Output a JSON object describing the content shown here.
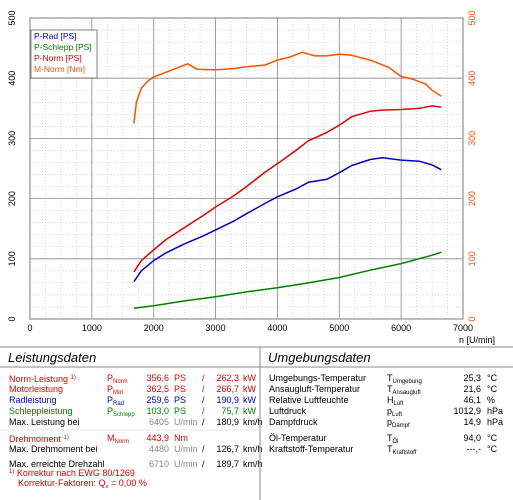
{
  "chart_data": {
    "type": "line",
    "x_axis": {
      "min": 0,
      "max": 7000,
      "ticks": [
        0,
        1000,
        2000,
        3000,
        4000,
        5000,
        6000,
        7000
      ],
      "label": "n [U/min]"
    },
    "y_left": {
      "min": 0,
      "max": 500,
      "ticks": [
        0,
        100,
        200,
        300,
        400,
        500
      ]
    },
    "y_right": {
      "min": 0,
      "max": 500,
      "ticks": [
        0,
        100,
        200,
        300,
        400,
        500
      ]
    },
    "grid": true,
    "legend_position": "top-left",
    "series": [
      {
        "name": "P-Rad [PS]",
        "color": "#0000c8",
        "axis": "left",
        "x": [
          1680,
          1800,
          2000,
          2200,
          2500,
          2800,
          3000,
          3300,
          3500,
          3800,
          4000,
          4300,
          4500,
          4800,
          5000,
          5200,
          5500,
          5700,
          6000,
          6300,
          6500,
          6650
        ],
        "y": [
          62,
          80,
          97,
          110,
          125,
          138,
          148,
          163,
          175,
          192,
          203,
          216,
          227,
          232,
          243,
          255,
          265,
          268,
          264,
          262,
          256,
          248
        ]
      },
      {
        "name": "P-Schlepp [PS]",
        "color": "#008000",
        "axis": "left",
        "x": [
          1680,
          2000,
          2500,
          3000,
          3500,
          4000,
          4500,
          5000,
          5500,
          6000,
          6500,
          6650
        ],
        "y": [
          18,
          22,
          30,
          37,
          45,
          52,
          60,
          69,
          81,
          92,
          106,
          111
        ]
      },
      {
        "name": "P-Norm [PS]",
        "color": "#e00000",
        "axis": "left",
        "x": [
          1680,
          1800,
          2000,
          2200,
          2500,
          2800,
          3000,
          3300,
          3500,
          3800,
          4000,
          4300,
          4500,
          4800,
          5000,
          5200,
          5500,
          5700,
          6000,
          6300,
          6500,
          6650
        ],
        "y": [
          78,
          97,
          115,
          132,
          152,
          172,
          186,
          205,
          220,
          244,
          258,
          280,
          296,
          310,
          322,
          336,
          345,
          347,
          348,
          350,
          354,
          352
        ]
      },
      {
        "name": "M-Norm [Nm]",
        "color": "#ff5000",
        "axis": "right",
        "x": [
          1680,
          1720,
          1800,
          1900,
          2000,
          2200,
          2400,
          2550,
          2700,
          3000,
          3300,
          3500,
          3800,
          4000,
          4200,
          4400,
          4600,
          4800,
          5000,
          5200,
          5500,
          5800,
          6000,
          6200,
          6400,
          6500,
          6650
        ],
        "y": [
          325,
          360,
          383,
          395,
          402,
          410,
          418,
          424,
          415,
          414,
          416,
          419,
          422,
          430,
          435,
          443,
          437,
          437,
          440,
          438,
          430,
          418,
          403,
          398,
          390,
          380,
          370
        ]
      }
    ]
  },
  "left_panel": {
    "title": "Leistungsdaten",
    "rows": [
      {
        "label": "Norm-Leistung",
        "sup": "1)",
        "sym": "P",
        "sub": "Norm",
        "v1": "356,6",
        "u1": "PS",
        "sep": "/",
        "v2": "262,3",
        "u2": "kW"
      },
      {
        "label": "Motorleistung",
        "sym": "P",
        "sub": "Mot",
        "v1": "362,5",
        "u1": "PS",
        "sep": "/",
        "v2": "266,7",
        "u2": "kW"
      },
      {
        "label": "Radleistung",
        "sym": "P",
        "sub": "Rad",
        "v1": "259,6",
        "u1": "PS",
        "sep": "/",
        "v2": "190,9",
        "u2": "kW"
      },
      {
        "label": "Schleppleistung",
        "sym": "P",
        "sub": "Schlepp",
        "v1": "103,0",
        "u1": "PS",
        "sep": "/",
        "v2": "75,7",
        "u2": "kW"
      },
      {
        "label": "Max. Leistung bei",
        "v1": "6405",
        "u1": "U/min",
        "sep": "/",
        "v2": "180,9",
        "u2": "km/h"
      },
      {
        "label": "Drehmoment",
        "sup": "1)",
        "sym": "M",
        "sub": "Norm",
        "v1": "443,9",
        "u1": "Nm"
      },
      {
        "label": "Max. Drehmoment bei",
        "v1": "4480",
        "u1": "U/min",
        "sep": "/",
        "v2": "126,7",
        "u2": "km/h"
      },
      {
        "label": "Max. erreichte Drehzahl",
        "v1": "6710",
        "u1": "U/min",
        "sep": "/",
        "v2": "189,7",
        "u2": "km/h"
      }
    ],
    "footnote1": "Korrektur nach EWG 80/1269",
    "footnote1_mark": "1)",
    "footnote2": "Korrektur-Faktoren: Q",
    "footnote2_sub": "v",
    "footnote2_val": "=   0,00 %"
  },
  "right_panel": {
    "title": "Umgebungsdaten",
    "rows": [
      {
        "label": "Umgebungs-Temperatur",
        "sym": "T",
        "sub": "Umgebung",
        "v": "25,3",
        "u": "°C"
      },
      {
        "label": "Ansaugluft-Temperatur",
        "sym": "T",
        "sub": "Ansaugluft",
        "v": "21,6",
        "u": "°C"
      },
      {
        "label": "Relative Luftfeuchte",
        "sym": "H",
        "sub": "Luft",
        "v": "46,1",
        "u": "%"
      },
      {
        "label": "Luftdruck",
        "sym": "p",
        "sub": "Luft",
        "v": "1012,9",
        "u": "hPa"
      },
      {
        "label": "Dampfdruck",
        "sym": "p",
        "sub": "Dampf",
        "v": "14,9",
        "u": "hPa"
      },
      {
        "label": "Öl-Temperatur",
        "sym": "T",
        "sub": "Öl",
        "v": "94,0",
        "u": "°C"
      },
      {
        "label": "Kraftstoff-Temperatur",
        "sym": "T",
        "sub": "Kraftstoff",
        "v": "---,-",
        "u": "°C"
      }
    ]
  }
}
